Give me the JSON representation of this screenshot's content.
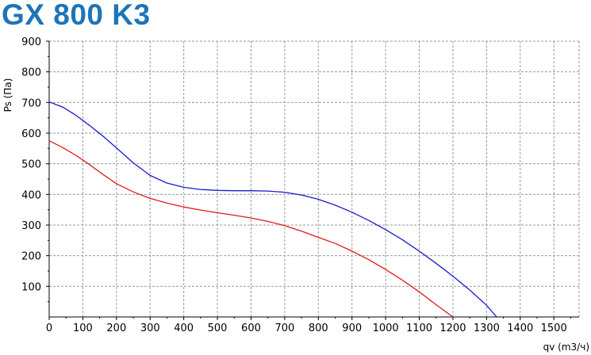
{
  "colors": {
    "title": "#1f74b8",
    "grid": "#9a9a9a",
    "axis": "#000000"
  },
  "chart_data": {
    "type": "line",
    "title": "GX 800 K3",
    "xlabel": "qv (m3/ч)",
    "ylabel": "Ps (Па)",
    "xlim": [
      0,
      1575
    ],
    "ylim": [
      0,
      900
    ],
    "x_ticks": [
      0,
      100,
      200,
      300,
      400,
      500,
      600,
      700,
      800,
      900,
      1000,
      1100,
      1200,
      1300,
      1400,
      1500
    ],
    "y_ticks": [
      100,
      200,
      300,
      400,
      500,
      600,
      700,
      800,
      900
    ],
    "grid": true,
    "series": [
      {
        "color": "#1a1ad0",
        "x": [
          0,
          40,
          80,
          120,
          160,
          200,
          250,
          300,
          350,
          400,
          450,
          500,
          550,
          600,
          650,
          700,
          750,
          800,
          850,
          900,
          950,
          1000,
          1050,
          1100,
          1150,
          1200,
          1250,
          1300,
          1330
        ],
        "y": [
          702,
          685,
          658,
          625,
          590,
          552,
          503,
          462,
          437,
          423,
          416,
          413,
          412,
          412,
          411,
          407,
          398,
          384,
          365,
          342,
          315,
          285,
          252,
          215,
          175,
          133,
          88,
          38,
          0
        ]
      },
      {
        "color": "#e01a1a",
        "x": [
          0,
          40,
          80,
          120,
          160,
          200,
          250,
          300,
          350,
          400,
          450,
          500,
          550,
          600,
          650,
          700,
          750,
          800,
          850,
          900,
          950,
          1000,
          1050,
          1100,
          1150,
          1200
        ],
        "y": [
          575,
          553,
          527,
          497,
          465,
          435,
          408,
          387,
          372,
          359,
          349,
          340,
          332,
          323,
          312,
          298,
          280,
          260,
          240,
          215,
          187,
          155,
          120,
          82,
          40,
          0
        ]
      }
    ]
  }
}
